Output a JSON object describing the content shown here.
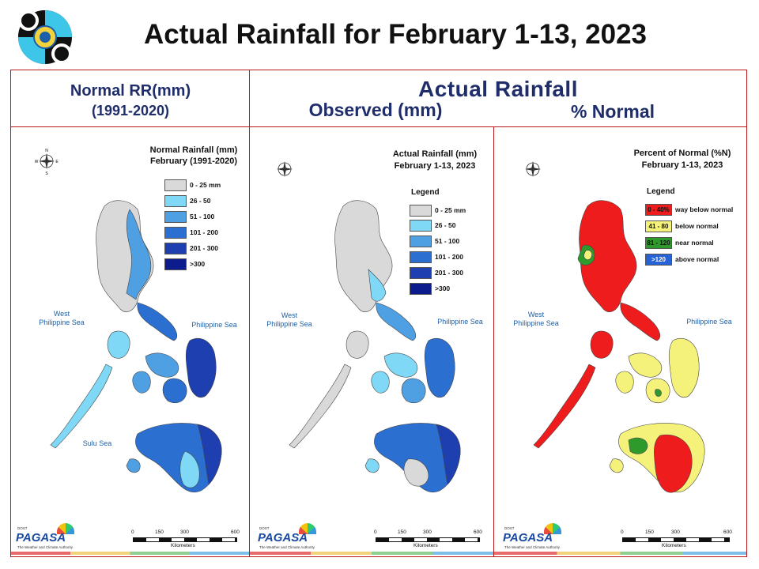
{
  "title": "Actual Rainfall for February 1-13, 2023",
  "headers": {
    "normal_line1": "Normal RR(mm)",
    "normal_line2": "(1991-2020)",
    "actual": "Actual Rainfall",
    "observed": "Observed (mm)",
    "percent": "% Normal"
  },
  "panels": [
    {
      "title_line1": "Normal Rainfall (mm)",
      "title_line2": "February (1991-2020)",
      "legend_heading": "",
      "legend": [
        {
          "label": "0 - 25 mm",
          "color": "#d9d9d9"
        },
        {
          "label": "26 - 50",
          "color": "#7fd8f6"
        },
        {
          "label": "51 - 100",
          "color": "#4f9fe3"
        },
        {
          "label": "101 - 200",
          "color": "#2b6fd1"
        },
        {
          "label": "201 - 300",
          "color": "#1d3fb0"
        },
        {
          "label": ">300",
          "color": "#0c1c8c"
        }
      ],
      "seas": {
        "west": "West\nPhilippine Sea",
        "east": "Philippine Sea",
        "south": "Sulu Sea"
      }
    },
    {
      "title_line1": "Actual Rainfall (mm)",
      "title_line2": "February 1-13, 2023",
      "legend_heading": "Legend",
      "legend": [
        {
          "label": "0 - 25 mm",
          "color": "#d9d9d9"
        },
        {
          "label": "26 - 50",
          "color": "#7fd8f6"
        },
        {
          "label": "51 - 100",
          "color": "#4f9fe3"
        },
        {
          "label": "101 - 200",
          "color": "#2b6fd1"
        },
        {
          "label": "201 - 300",
          "color": "#1d3fb0"
        },
        {
          "label": ">300",
          "color": "#0c1c8c"
        }
      ],
      "seas": {
        "west": "West\nPhilippine Sea",
        "east": "Philippine Sea",
        "south": ""
      }
    },
    {
      "title_line1": "Percent of Normal (%N)",
      "title_line2": "February 1-13, 2023",
      "legend_heading": "Legend",
      "legend": [
        {
          "swatch": "0 - 40%",
          "label": "way below normal",
          "color": "#ee1c1c"
        },
        {
          "swatch": "41 - 80",
          "label": "below normal",
          "color": "#f4f27a"
        },
        {
          "swatch": "81 - 120",
          "label": "near normal",
          "color": "#2f9a2c"
        },
        {
          "swatch": ">120",
          "label": "above normal",
          "color": "#2563d6"
        }
      ],
      "seas": {
        "west": "West\nPhilippine Sea",
        "east": "Philippine Sea",
        "south": ""
      }
    }
  ],
  "scale": {
    "ticks": [
      "0",
      "150",
      "300",
      "600"
    ],
    "unit": "Kilometers"
  },
  "compass": {
    "n": "N",
    "s": "S",
    "e": "E",
    "w": "W"
  },
  "branding": {
    "name": "PAGASA",
    "dost": "DOST",
    "tagline": "The Weather and Climate Authority"
  },
  "colors": {
    "frame": "#b5171b",
    "header_text": "#1f2d6b",
    "land_red": "#ee1c1c",
    "gray": "#d9d9d9"
  }
}
